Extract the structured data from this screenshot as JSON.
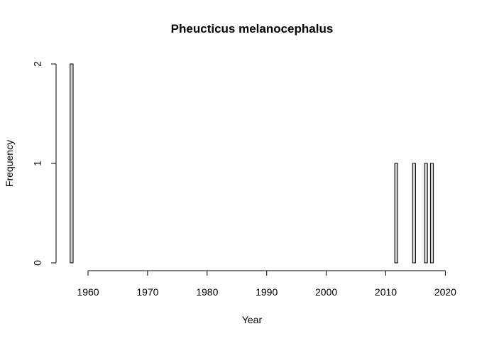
{
  "chart_data": {
    "type": "bar",
    "title": "Pheucticus melanocephalus",
    "xlabel": "Year",
    "ylabel": "Frequency",
    "bin_width": 0.5,
    "bins_start": 1957,
    "bins_end": 2018,
    "counts": [
      {
        "start": 1957,
        "value": 2
      },
      {
        "start": 2011.5,
        "value": 1
      },
      {
        "start": 2014.5,
        "value": 1
      },
      {
        "start": 2016.5,
        "value": 1
      },
      {
        "start": 2017.5,
        "value": 1
      }
    ],
    "xlim": [
      1957,
      2018
    ],
    "ylim": [
      0,
      2
    ],
    "xticks": [
      1960,
      1970,
      1980,
      1990,
      2000,
      2010,
      2020
    ],
    "yticks": [
      0,
      1,
      2
    ],
    "grid": false,
    "bar_fill": "#d3d3d3",
    "bar_stroke": "#000000"
  }
}
